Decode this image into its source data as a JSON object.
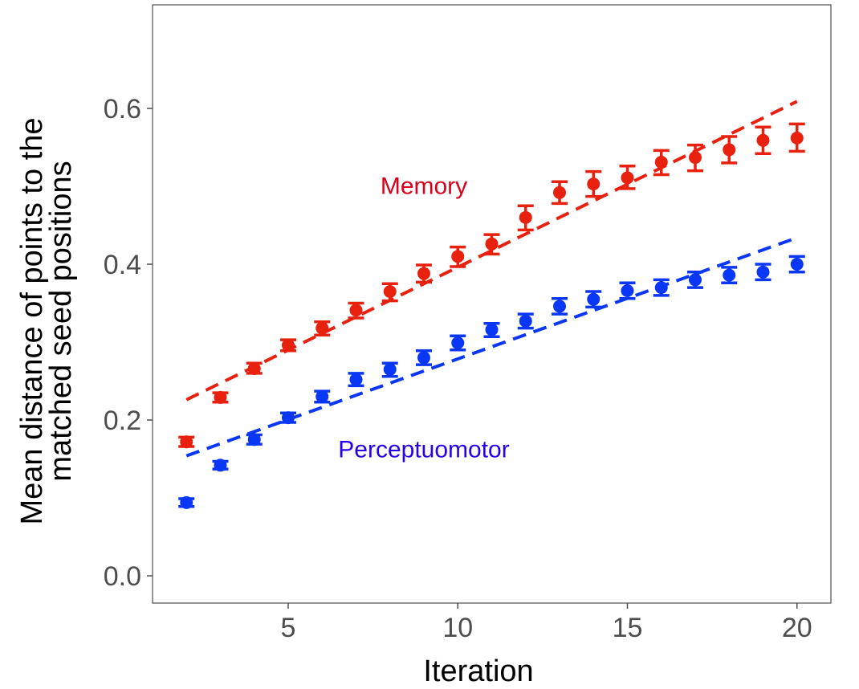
{
  "chart_data": {
    "type": "scatter",
    "title": "",
    "xlabel": "Iteration",
    "ylabel_lines": [
      "Mean distance of points to the",
      "matched seed positions"
    ],
    "xlim": [
      1.0,
      21.0
    ],
    "ylim": [
      -0.035,
      0.733
    ],
    "x_ticks": [
      5,
      10,
      15,
      20
    ],
    "y_ticks": [
      0.0,
      0.2,
      0.4,
      0.6
    ],
    "y_tick_labels": [
      "0.0",
      "0.2",
      "0.4",
      "0.6"
    ],
    "grid": false,
    "x": [
      2,
      3,
      4,
      5,
      6,
      7,
      8,
      9,
      10,
      11,
      12,
      13,
      14,
      15,
      16,
      17,
      18,
      19,
      20
    ],
    "series": [
      {
        "name": "Memory",
        "color": "#e8210f",
        "label_color": "#d9001b",
        "label_pos": [
          9.0,
          0.49
        ],
        "mean": [
          0.172,
          0.229,
          0.266,
          0.296,
          0.318,
          0.341,
          0.365,
          0.388,
          0.41,
          0.426,
          0.46,
          0.492,
          0.503,
          0.511,
          0.531,
          0.537,
          0.547,
          0.559,
          0.562
        ],
        "lower": [
          0.166,
          0.223,
          0.26,
          0.289,
          0.309,
          0.331,
          0.353,
          0.377,
          0.397,
          0.413,
          0.444,
          0.478,
          0.487,
          0.497,
          0.515,
          0.52,
          0.53,
          0.542,
          0.545
        ],
        "upper": [
          0.178,
          0.235,
          0.273,
          0.303,
          0.326,
          0.35,
          0.375,
          0.399,
          0.422,
          0.438,
          0.475,
          0.506,
          0.519,
          0.526,
          0.546,
          0.553,
          0.564,
          0.576,
          0.58
        ],
        "trend": [
          [
            2,
            0.226
          ],
          [
            20,
            0.609
          ]
        ]
      },
      {
        "name": "Perceptuomotor",
        "color": "#0a37f5",
        "label_color": "#2a00e8",
        "label_pos": [
          9.0,
          0.152
        ],
        "mean": [
          0.094,
          0.142,
          0.175,
          0.203,
          0.23,
          0.252,
          0.265,
          0.28,
          0.299,
          0.316,
          0.327,
          0.346,
          0.355,
          0.366,
          0.37,
          0.38,
          0.386,
          0.39,
          0.4
        ],
        "lower": [
          0.089,
          0.137,
          0.169,
          0.197,
          0.223,
          0.244,
          0.256,
          0.271,
          0.29,
          0.307,
          0.318,
          0.336,
          0.345,
          0.356,
          0.36,
          0.37,
          0.376,
          0.38,
          0.39
        ],
        "upper": [
          0.099,
          0.147,
          0.181,
          0.209,
          0.237,
          0.26,
          0.273,
          0.289,
          0.308,
          0.324,
          0.336,
          0.356,
          0.365,
          0.376,
          0.38,
          0.39,
          0.396,
          0.4,
          0.41
        ],
        "trend": [
          [
            2,
            0.154
          ],
          [
            20,
            0.434
          ]
        ]
      }
    ]
  }
}
